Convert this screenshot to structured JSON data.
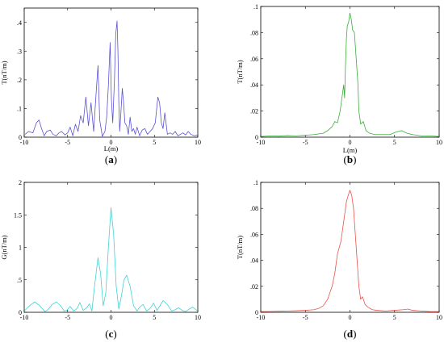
{
  "chart_data": [
    {
      "id": "a",
      "type": "line",
      "caption": "a",
      "xlabel": "L(m)",
      "ylabel": "T(nT/m)",
      "xlim": [
        -10,
        10
      ],
      "ylim": [
        0,
        0.45
      ],
      "xticks": [
        -10,
        -5,
        0,
        5,
        10
      ],
      "yticks": [
        0,
        0.1,
        0.2,
        0.3,
        0.4
      ],
      "color": "#5a52d6",
      "series": [
        {
          "x": [
            -9.9,
            -9.5,
            -9.0,
            -8.6,
            -8.3,
            -8.0,
            -7.7,
            -7.4,
            -7.0,
            -6.7,
            -6.3,
            -6.0,
            -5.7,
            -5.3,
            -5.0,
            -4.7,
            -4.4,
            -4.1,
            -3.8,
            -3.5,
            -3.2,
            -2.9,
            -2.6,
            -2.3,
            -2.0,
            -1.7,
            -1.5,
            -1.3,
            -1.0,
            -0.7,
            -0.5,
            -0.3,
            -0.1,
            0.05,
            0.2,
            0.4,
            0.55,
            0.7,
            0.8,
            0.9,
            1.0,
            1.15,
            1.3,
            1.45,
            1.6,
            1.8,
            2.0,
            2.2,
            2.4,
            2.6,
            2.8,
            3.0,
            3.3,
            3.6,
            3.9,
            4.2,
            4.5,
            4.8,
            5.1,
            5.4,
            5.6,
            5.8,
            6.0,
            6.2,
            6.5,
            6.8,
            7.1,
            7.4,
            7.7,
            8.0,
            8.3,
            8.6,
            8.9,
            9.2,
            9.6,
            10.0
          ],
          "y": [
            0.01,
            0.02,
            0.015,
            0.05,
            0.06,
            0.03,
            0.005,
            0.02,
            0.025,
            0.01,
            0.005,
            0.015,
            0.02,
            0.008,
            0.015,
            0.035,
            0.005,
            0.045,
            0.02,
            0.075,
            0.05,
            0.14,
            0.04,
            0.12,
            0.02,
            0.16,
            0.25,
            0.06,
            0.003,
            0.02,
            0.07,
            0.18,
            0.33,
            0.13,
            0.05,
            0.2,
            0.36,
            0.405,
            0.3,
            0.12,
            0.02,
            0.09,
            0.17,
            0.12,
            0.05,
            0.04,
            0.01,
            0.07,
            0.02,
            0.03,
            0.01,
            0.035,
            0.005,
            0.025,
            0.03,
            0.01,
            0.02,
            0.03,
            0.05,
            0.14,
            0.12,
            0.05,
            0.03,
            0.085,
            0.01,
            0.015,
            0.01,
            0.02,
            0.005,
            0.01,
            0.015,
            0.008,
            0.02,
            0.01,
            0.005,
            0.008
          ]
        }
      ]
    },
    {
      "id": "b",
      "type": "line",
      "caption": "b",
      "xlabel": "L(m)",
      "ylabel": "T(nT/m)",
      "xlim": [
        -10,
        10
      ],
      "ylim": [
        0,
        0.1
      ],
      "xticks": [
        -10,
        -5,
        0,
        5,
        10
      ],
      "yticks": [
        0,
        0.02,
        0.04,
        0.06,
        0.08,
        0.1
      ],
      "color": "#3cae3c",
      "series": [
        {
          "x": [
            -10,
            -9,
            -8,
            -7,
            -6,
            -5,
            -4,
            -3,
            -2.5,
            -2,
            -1.7,
            -1.4,
            -1.1,
            -0.9,
            -0.7,
            -0.6,
            -0.5,
            -0.4,
            -0.3,
            -0.15,
            0,
            0.15,
            0.3,
            0.5,
            0.7,
            0.9,
            1.0,
            1.2,
            1.5,
            1.8,
            2.2,
            2.8,
            3.5,
            4.5,
            5.2,
            5.8,
            6.4,
            7,
            8,
            9,
            10
          ],
          "y": [
            0.0005,
            0.001,
            0.0008,
            0.0012,
            0.001,
            0.0015,
            0.002,
            0.003,
            0.005,
            0.008,
            0.012,
            0.011,
            0.02,
            0.03,
            0.04,
            0.03,
            0.055,
            0.075,
            0.085,
            0.088,
            0.095,
            0.09,
            0.082,
            0.08,
            0.06,
            0.04,
            0.02,
            0.01,
            0.012,
            0.005,
            0.003,
            0.002,
            0.002,
            0.002,
            0.004,
            0.005,
            0.003,
            0.002,
            0.001,
            0.001,
            0.0005
          ]
        }
      ]
    },
    {
      "id": "c",
      "type": "line",
      "caption": "c",
      "xlabel": "",
      "ylabel": "G(nT/m)",
      "xlim": [
        -10,
        10
      ],
      "ylim": [
        0,
        2
      ],
      "xticks": [
        -10,
        -5,
        0,
        5,
        10
      ],
      "yticks": [
        0,
        0.5,
        1,
        1.5,
        2
      ],
      "color": "#41d3d3",
      "series": [
        {
          "x": [
            -10,
            -9.4,
            -8.8,
            -8.2,
            -7.6,
            -7.2,
            -6.8,
            -6.3,
            -5.8,
            -5.4,
            -5.1,
            -4.7,
            -4.3,
            -3.9,
            -3.6,
            -3.2,
            -2.8,
            -2.5,
            -2.2,
            -1.9,
            -1.5,
            -1.2,
            -0.9,
            -0.6,
            -0.3,
            0,
            0.3,
            0.6,
            0.9,
            1.2,
            1.5,
            1.8,
            2.2,
            2.6,
            3.0,
            3.3,
            3.7,
            4.1,
            4.5,
            4.9,
            5.3,
            5.6,
            6.0,
            6.5,
            7.0,
            7.4,
            7.8,
            8.2,
            8.6,
            9.0,
            9.4,
            10
          ],
          "y": [
            0.02,
            0.1,
            0.16,
            0.1,
            0.01,
            0.05,
            0.12,
            0.16,
            0.1,
            0.02,
            0.03,
            0.09,
            0.02,
            0.06,
            0.15,
            0.03,
            0.07,
            0.13,
            0.02,
            0.4,
            0.84,
            0.6,
            0.1,
            0.3,
            1.0,
            1.61,
            1.2,
            0.4,
            0.05,
            0.25,
            0.5,
            0.57,
            0.4,
            0.1,
            0.02,
            0.08,
            0.12,
            0.02,
            0.06,
            0.14,
            0.03,
            0.09,
            0.18,
            0.12,
            0.02,
            0.04,
            0.07,
            0.03,
            0.01,
            0.05,
            0.08,
            0.02
          ]
        }
      ]
    },
    {
      "id": "d",
      "type": "line",
      "caption": "d",
      "xlabel": "",
      "ylabel": "T(nT/m)",
      "xlim": [
        -10,
        10
      ],
      "ylim": [
        0,
        0.1
      ],
      "xticks": [
        -10,
        -5,
        0,
        5,
        10
      ],
      "yticks": [
        0,
        0.02,
        0.04,
        0.06,
        0.08,
        0.1
      ],
      "color": "#e8524a",
      "series": [
        {
          "x": [
            -10,
            -9,
            -8,
            -7,
            -6,
            -5,
            -4,
            -3.5,
            -3,
            -2.5,
            -2,
            -1.7,
            -1.4,
            -1.2,
            -1,
            -0.8,
            -0.6,
            -0.4,
            -0.2,
            0,
            0.2,
            0.4,
            0.6,
            0.8,
            1.0,
            1.1,
            1.2,
            1.4,
            1.7,
            2,
            2.5,
            3,
            4,
            5,
            6,
            6.5,
            7,
            8,
            9,
            10
          ],
          "y": [
            0.0005,
            0.0006,
            0.0008,
            0.001,
            0.0012,
            0.0015,
            0.002,
            0.003,
            0.005,
            0.01,
            0.02,
            0.03,
            0.045,
            0.05,
            0.055,
            0.065,
            0.075,
            0.085,
            0.09,
            0.094,
            0.09,
            0.08,
            0.06,
            0.04,
            0.02,
            0.015,
            0.01,
            0.012,
            0.006,
            0.004,
            0.002,
            0.0015,
            0.001,
            0.0015,
            0.002,
            0.0025,
            0.0015,
            0.001,
            0.0005,
            0.0005
          ]
        }
      ]
    }
  ]
}
